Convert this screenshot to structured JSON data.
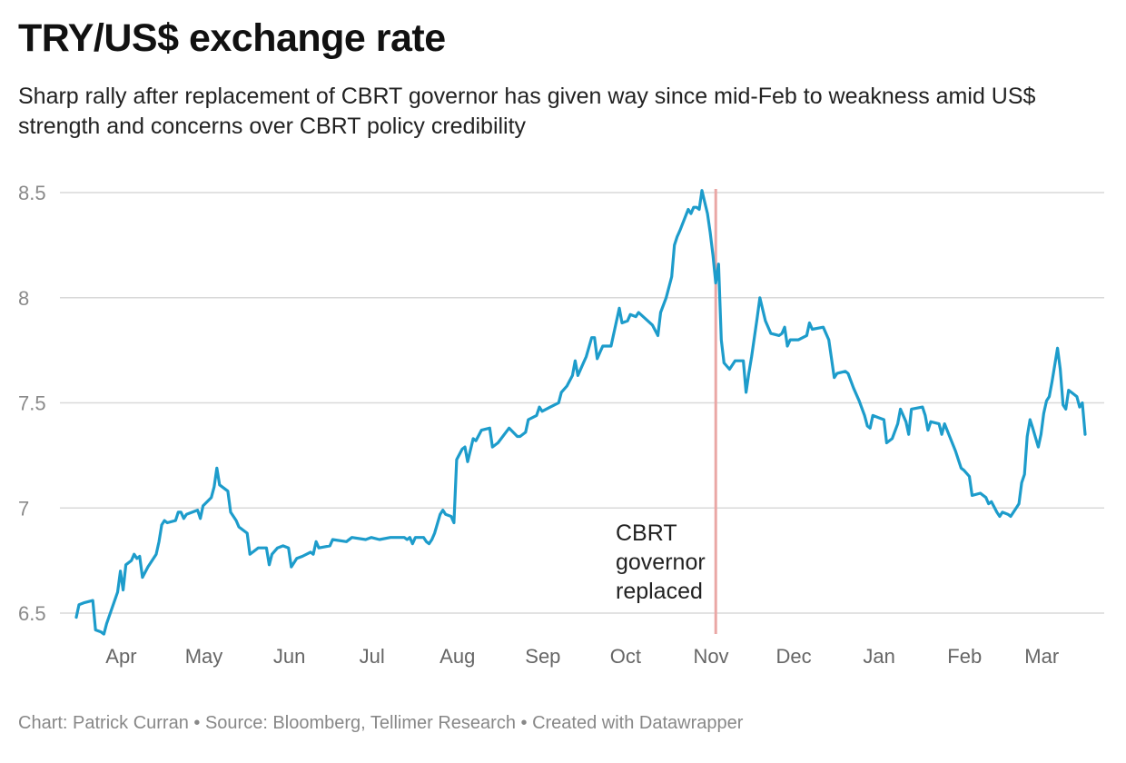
{
  "header": {
    "title": "TRY/US$ exchange rate",
    "subtitle": "Sharp rally after replacement of CBRT governor has given way since mid-Feb to weakness amid US$ strength and concerns over CBRT policy credibility"
  },
  "footer": {
    "text": "Chart: Patrick Curran • Source: Bloomberg, Tellimer Research • Created with Datawrapper"
  },
  "colors": {
    "line": "#1d9ccb",
    "marker": "#eaa7a5",
    "grid": "#d9d9d9"
  },
  "chart_data": {
    "type": "line",
    "title": "TRY/US$ exchange rate",
    "xlabel": "",
    "ylabel": "",
    "ylim": [
      6.5,
      8.5
    ],
    "yticks": [
      "6.5",
      "7",
      "7.5",
      "8",
      "8.5"
    ],
    "x_range": [
      "2020-03-20",
      "2021-03-22"
    ],
    "xticks": [
      {
        "label": "Apr",
        "date": "2020-04-01"
      },
      {
        "label": "May",
        "date": "2020-05-01"
      },
      {
        "label": "Jun",
        "date": "2020-06-01"
      },
      {
        "label": "Jul",
        "date": "2020-07-01"
      },
      {
        "label": "Aug",
        "date": "2020-08-01"
      },
      {
        "label": "Sep",
        "date": "2020-09-01"
      },
      {
        "label": "Oct",
        "date": "2020-10-01"
      },
      {
        "label": "Nov",
        "date": "2020-11-01"
      },
      {
        "label": "Dec",
        "date": "2020-12-01"
      },
      {
        "label": "Jan",
        "date": "2021-01-01"
      },
      {
        "label": "Feb",
        "date": "2021-02-01"
      },
      {
        "label": "Mar",
        "date": "2021-03-01"
      }
    ],
    "annotation": {
      "date": "2020-11-07",
      "lines": [
        "CBRT",
        "governor",
        "replaced"
      ]
    },
    "series": [
      {
        "name": "TRY/US$",
        "points": [
          [
            "2020-03-20",
            6.48
          ],
          [
            "2020-03-21",
            6.54
          ],
          [
            "2020-03-23",
            6.55
          ],
          [
            "2020-03-26",
            6.56
          ],
          [
            "2020-03-27",
            6.42
          ],
          [
            "2020-03-29",
            6.41
          ],
          [
            "2020-03-30",
            6.4
          ],
          [
            "2020-03-31",
            6.45
          ],
          [
            "2020-04-04",
            6.6
          ],
          [
            "2020-04-05",
            6.7
          ],
          [
            "2020-04-06",
            6.61
          ],
          [
            "2020-04-07",
            6.73
          ],
          [
            "2020-04-09",
            6.75
          ],
          [
            "2020-04-10",
            6.78
          ],
          [
            "2020-04-11",
            6.76
          ],
          [
            "2020-04-12",
            6.77
          ],
          [
            "2020-04-13",
            6.67
          ],
          [
            "2020-04-15",
            6.72
          ],
          [
            "2020-04-18",
            6.78
          ],
          [
            "2020-04-19",
            6.84
          ],
          [
            "2020-04-20",
            6.92
          ],
          [
            "2020-04-21",
            6.94
          ],
          [
            "2020-04-22",
            6.93
          ],
          [
            "2020-04-25",
            6.94
          ],
          [
            "2020-04-26",
            6.98
          ],
          [
            "2020-04-27",
            6.98
          ],
          [
            "2020-04-28",
            6.95
          ],
          [
            "2020-04-29",
            6.97
          ],
          [
            "2020-05-03",
            6.99
          ],
          [
            "2020-05-04",
            6.95
          ],
          [
            "2020-05-05",
            7.01
          ],
          [
            "2020-05-08",
            7.05
          ],
          [
            "2020-05-09",
            7.1
          ],
          [
            "2020-05-10",
            7.19
          ],
          [
            "2020-05-11",
            7.11
          ],
          [
            "2020-05-14",
            7.08
          ],
          [
            "2020-05-15",
            6.98
          ],
          [
            "2020-05-17",
            6.94
          ],
          [
            "2020-05-18",
            6.91
          ],
          [
            "2020-05-21",
            6.88
          ],
          [
            "2020-05-22",
            6.78
          ],
          [
            "2020-05-23",
            6.79
          ],
          [
            "2020-05-25",
            6.81
          ],
          [
            "2020-05-28",
            6.81
          ],
          [
            "2020-05-29",
            6.73
          ],
          [
            "2020-05-30",
            6.78
          ],
          [
            "2020-06-01",
            6.81
          ],
          [
            "2020-06-03",
            6.82
          ],
          [
            "2020-06-05",
            6.81
          ],
          [
            "2020-06-06",
            6.72
          ],
          [
            "2020-06-08",
            6.76
          ],
          [
            "2020-06-10",
            6.77
          ],
          [
            "2020-06-13",
            6.79
          ],
          [
            "2020-06-14",
            6.78
          ],
          [
            "2020-06-15",
            6.84
          ],
          [
            "2020-06-16",
            6.81
          ],
          [
            "2020-06-20",
            6.82
          ],
          [
            "2020-06-21",
            6.85
          ],
          [
            "2020-06-26",
            6.84
          ],
          [
            "2020-06-28",
            6.86
          ],
          [
            "2020-07-03",
            6.85
          ],
          [
            "2020-07-05",
            6.86
          ],
          [
            "2020-07-08",
            6.85
          ],
          [
            "2020-07-12",
            6.86
          ],
          [
            "2020-07-13",
            6.86
          ],
          [
            "2020-07-15",
            6.86
          ],
          [
            "2020-07-17",
            6.86
          ],
          [
            "2020-07-18",
            6.85
          ],
          [
            "2020-07-19",
            6.86
          ],
          [
            "2020-07-20",
            6.83
          ],
          [
            "2020-07-21",
            6.86
          ],
          [
            "2020-07-24",
            6.86
          ],
          [
            "2020-07-25",
            6.84
          ],
          [
            "2020-07-26",
            6.83
          ],
          [
            "2020-07-27",
            6.85
          ],
          [
            "2020-07-28",
            6.88
          ],
          [
            "2020-07-30",
            6.97
          ],
          [
            "2020-07-31",
            6.99
          ],
          [
            "2020-08-01",
            6.97
          ],
          [
            "2020-08-03",
            6.96
          ],
          [
            "2020-08-04",
            6.93
          ],
          [
            "2020-08-05",
            7.23
          ],
          [
            "2020-08-07",
            7.28
          ],
          [
            "2020-08-08",
            7.29
          ],
          [
            "2020-08-09",
            7.22
          ],
          [
            "2020-08-11",
            7.33
          ],
          [
            "2020-08-12",
            7.32
          ],
          [
            "2020-08-14",
            7.37
          ],
          [
            "2020-08-17",
            7.38
          ],
          [
            "2020-08-18",
            7.29
          ],
          [
            "2020-08-20",
            7.31
          ],
          [
            "2020-08-24",
            7.38
          ],
          [
            "2020-08-27",
            7.34
          ],
          [
            "2020-08-28",
            7.34
          ],
          [
            "2020-08-30",
            7.36
          ],
          [
            "2020-08-31",
            7.42
          ],
          [
            "2020-09-03",
            7.44
          ],
          [
            "2020-09-04",
            7.48
          ],
          [
            "2020-09-05",
            7.46
          ],
          [
            "2020-09-08",
            7.48
          ],
          [
            "2020-09-11",
            7.5
          ],
          [
            "2020-09-12",
            7.55
          ],
          [
            "2020-09-14",
            7.58
          ],
          [
            "2020-09-16",
            7.63
          ],
          [
            "2020-09-17",
            7.7
          ],
          [
            "2020-09-18",
            7.63
          ],
          [
            "2020-09-20",
            7.69
          ],
          [
            "2020-09-21",
            7.72
          ],
          [
            "2020-09-23",
            7.81
          ],
          [
            "2020-09-24",
            7.81
          ],
          [
            "2020-09-25",
            7.71
          ],
          [
            "2020-09-26",
            7.74
          ],
          [
            "2020-09-27",
            7.77
          ],
          [
            "2020-09-28",
            7.77
          ],
          [
            "2020-09-30",
            7.77
          ],
          [
            "2020-10-03",
            7.95
          ],
          [
            "2020-10-04",
            7.88
          ],
          [
            "2020-10-06",
            7.89
          ],
          [
            "2020-10-07",
            7.92
          ],
          [
            "2020-10-09",
            7.91
          ],
          [
            "2020-10-10",
            7.93
          ],
          [
            "2020-10-15",
            7.87
          ],
          [
            "2020-10-17",
            7.82
          ],
          [
            "2020-10-18",
            7.93
          ],
          [
            "2020-10-20",
            8.0
          ],
          [
            "2020-10-22",
            8.1
          ],
          [
            "2020-10-23",
            8.25
          ],
          [
            "2020-10-24",
            8.29
          ],
          [
            "2020-10-25",
            8.32
          ],
          [
            "2020-10-28",
            8.42
          ],
          [
            "2020-10-29",
            8.4
          ],
          [
            "2020-10-30",
            8.43
          ],
          [
            "2020-10-31",
            8.43
          ],
          [
            "2020-11-01",
            8.42
          ],
          [
            "2020-11-02",
            8.51
          ],
          [
            "2020-11-04",
            8.4
          ],
          [
            "2020-11-05",
            8.31
          ],
          [
            "2020-11-06",
            8.2
          ],
          [
            "2020-11-07",
            8.07
          ],
          [
            "2020-11-08",
            8.16
          ],
          [
            "2020-11-09",
            7.8
          ],
          [
            "2020-11-10",
            7.69
          ],
          [
            "2020-11-12",
            7.66
          ],
          [
            "2020-11-14",
            7.7
          ],
          [
            "2020-11-17",
            7.7
          ],
          [
            "2020-11-18",
            7.55
          ],
          [
            "2020-11-19",
            7.64
          ],
          [
            "2020-11-20",
            7.72
          ],
          [
            "2020-11-22",
            7.9
          ],
          [
            "2020-11-23",
            8.0
          ],
          [
            "2020-11-25",
            7.89
          ],
          [
            "2020-11-27",
            7.83
          ],
          [
            "2020-11-30",
            7.82
          ],
          [
            "2020-12-01",
            7.83
          ],
          [
            "2020-12-02",
            7.86
          ],
          [
            "2020-12-03",
            7.77
          ],
          [
            "2020-12-04",
            7.8
          ],
          [
            "2020-12-07",
            7.8
          ],
          [
            "2020-12-10",
            7.82
          ],
          [
            "2020-12-11",
            7.88
          ],
          [
            "2020-12-12",
            7.85
          ],
          [
            "2020-12-16",
            7.86
          ],
          [
            "2020-12-18",
            7.8
          ],
          [
            "2020-12-20",
            7.62
          ],
          [
            "2020-12-21",
            7.64
          ],
          [
            "2020-12-24",
            7.65
          ],
          [
            "2020-12-25",
            7.64
          ],
          [
            "2020-12-27",
            7.57
          ],
          [
            "2020-12-29",
            7.51
          ],
          [
            "2020-12-31",
            7.44
          ],
          [
            "2021-01-01",
            7.39
          ],
          [
            "2021-01-02",
            7.38
          ],
          [
            "2021-01-03",
            7.44
          ],
          [
            "2021-01-05",
            7.43
          ],
          [
            "2021-01-07",
            7.42
          ],
          [
            "2021-01-08",
            7.31
          ],
          [
            "2021-01-10",
            7.33
          ],
          [
            "2021-01-12",
            7.4
          ],
          [
            "2021-01-13",
            7.47
          ],
          [
            "2021-01-15",
            7.41
          ],
          [
            "2021-01-16",
            7.35
          ],
          [
            "2021-01-17",
            7.47
          ],
          [
            "2021-01-21",
            7.48
          ],
          [
            "2021-01-22",
            7.44
          ],
          [
            "2021-01-23",
            7.37
          ],
          [
            "2021-01-24",
            7.41
          ],
          [
            "2021-01-27",
            7.4
          ],
          [
            "2021-01-28",
            7.35
          ],
          [
            "2021-01-29",
            7.4
          ],
          [
            "2021-02-02",
            7.27
          ],
          [
            "2021-02-04",
            7.19
          ],
          [
            "2021-02-05",
            7.18
          ],
          [
            "2021-02-07",
            7.15
          ],
          [
            "2021-02-08",
            7.06
          ],
          [
            "2021-02-11",
            7.07
          ],
          [
            "2021-02-13",
            7.05
          ],
          [
            "2021-02-14",
            7.02
          ],
          [
            "2021-02-15",
            7.03
          ],
          [
            "2021-02-17",
            6.98
          ],
          [
            "2021-02-18",
            6.96
          ],
          [
            "2021-02-19",
            6.98
          ],
          [
            "2021-02-21",
            6.97
          ],
          [
            "2021-02-22",
            6.96
          ],
          [
            "2021-02-24",
            7.0
          ],
          [
            "2021-02-25",
            7.02
          ],
          [
            "2021-02-26",
            7.12
          ],
          [
            "2021-02-27",
            7.16
          ],
          [
            "2021-02-28",
            7.34
          ],
          [
            "2021-03-01",
            7.42
          ],
          [
            "2021-03-02",
            7.38
          ],
          [
            "2021-03-04",
            7.29
          ],
          [
            "2021-03-05",
            7.35
          ],
          [
            "2021-03-06",
            7.45
          ],
          [
            "2021-03-07",
            7.51
          ],
          [
            "2021-03-08",
            7.53
          ],
          [
            "2021-03-09",
            7.6
          ],
          [
            "2021-03-11",
            7.76
          ],
          [
            "2021-03-12",
            7.66
          ],
          [
            "2021-03-13",
            7.49
          ],
          [
            "2021-03-14",
            7.47
          ],
          [
            "2021-03-15",
            7.56
          ],
          [
            "2021-03-16",
            7.55
          ],
          [
            "2021-03-18",
            7.53
          ],
          [
            "2021-03-19",
            7.48
          ],
          [
            "2021-03-20",
            7.5
          ],
          [
            "2021-03-21",
            7.35
          ]
        ]
      }
    ]
  }
}
